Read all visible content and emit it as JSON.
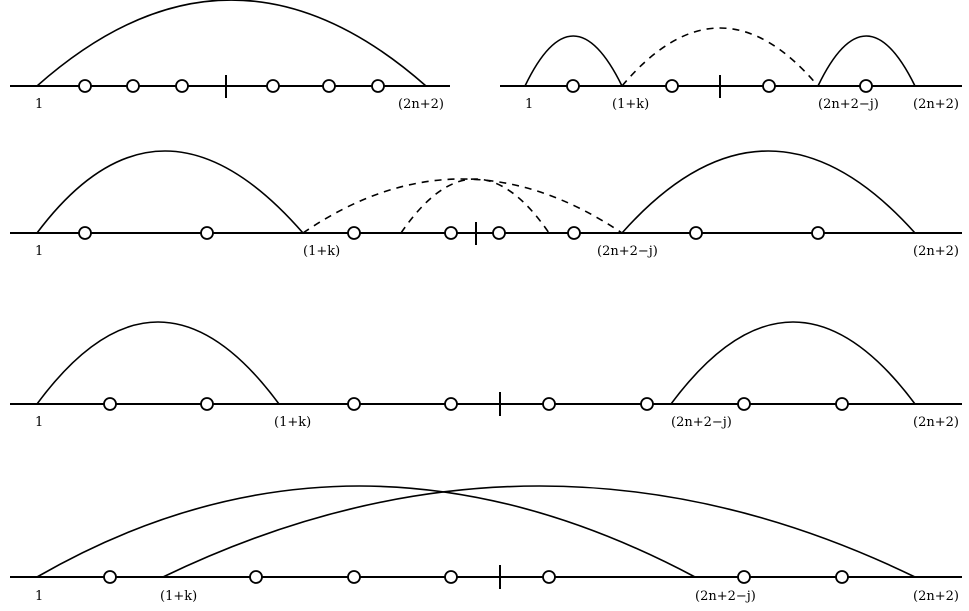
{
  "panels": [
    {
      "id": "a",
      "labels": [
        "1",
        "(2n+2)"
      ]
    },
    {
      "id": "b",
      "labels": [
        "1",
        "(1+k)",
        "(2n+2−j)",
        "(2n+2)"
      ]
    },
    {
      "id": "c",
      "labels": [
        "1",
        "(1+k)",
        "(2n+2−j)",
        "(2n+2)"
      ]
    },
    {
      "id": "d",
      "labels": [
        "1",
        "(1+k)",
        "(2n+2−j)",
        "(2n+2)"
      ]
    },
    {
      "id": "e",
      "labels": [
        "1",
        "(1+k)",
        "(2n+2−j)",
        "(2n+2)"
      ]
    }
  ]
}
